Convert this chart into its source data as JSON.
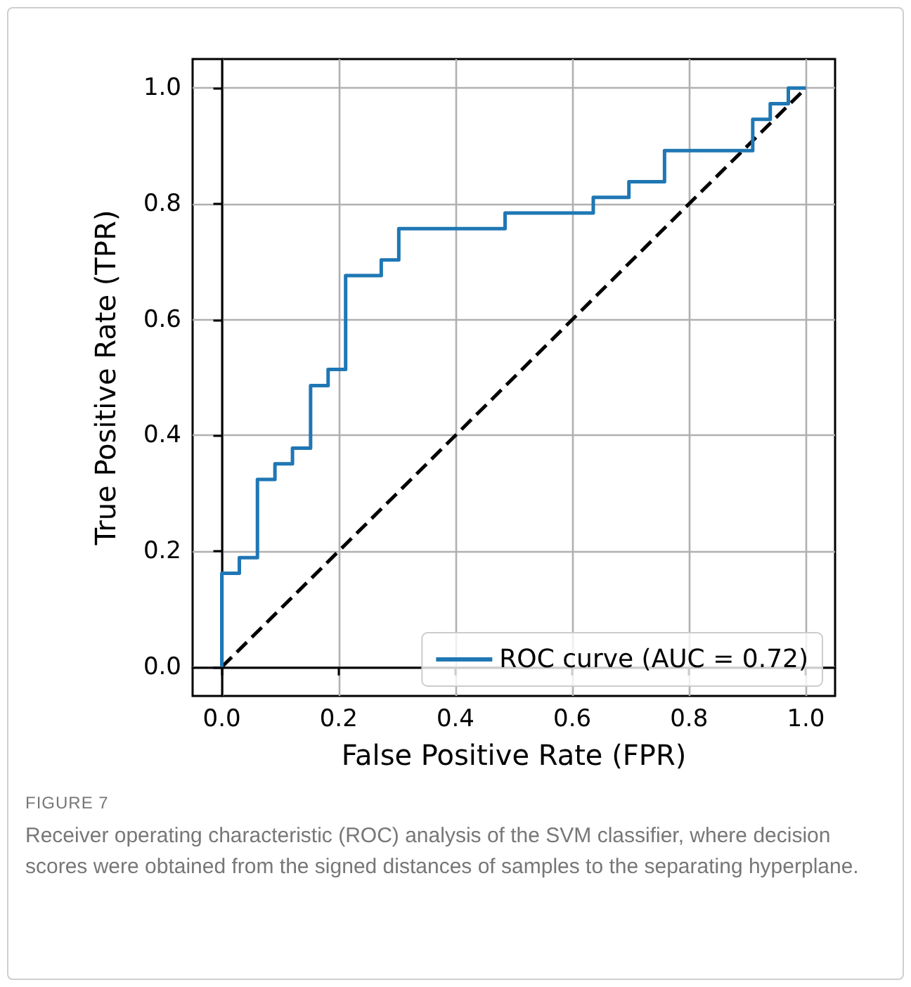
{
  "chart_data": {
    "type": "line",
    "xlabel": "False Positive Rate (FPR)",
    "ylabel": "True Positive Rate (TPR)",
    "series": [
      {
        "name": "ROC curve (AUC = 0.72)",
        "color": "#1f77b4",
        "line_style": "solid",
        "x": [
          0,
          0,
          0.03,
          0.03,
          0.061,
          0.061,
          0.091,
          0.091,
          0.121,
          0.121,
          0.152,
          0.152,
          0.182,
          0.182,
          0.212,
          0.212,
          0.273,
          0.273,
          0.303,
          0.303,
          0.485,
          0.485,
          0.636,
          0.636,
          0.697,
          0.697,
          0.758,
          0.758,
          0.909,
          0.909,
          0.939,
          0.939,
          0.97,
          0.97,
          1
        ],
        "values": [
          0,
          0.162,
          0.162,
          0.189,
          0.189,
          0.324,
          0.324,
          0.351,
          0.351,
          0.378,
          0.378,
          0.486,
          0.486,
          0.514,
          0.514,
          0.676,
          0.676,
          0.703,
          0.703,
          0.757,
          0.757,
          0.784,
          0.784,
          0.811,
          0.811,
          0.838,
          0.838,
          0.892,
          0.892,
          0.946,
          0.946,
          0.973,
          0.973,
          1,
          1
        ]
      },
      {
        "color": "#000000",
        "line_style": "dashed",
        "x": [
          0,
          1
        ],
        "values": [
          0,
          1
        ]
      }
    ],
    "xlim": [
      -0.05,
      1.05
    ],
    "ylim": [
      -0.05,
      1.05
    ],
    "xticks": [
      {
        "value": 0,
        "label": "0.0"
      },
      0.2,
      0.4,
      0.6,
      0.8,
      {
        "value": 1,
        "label": "1.0"
      }
    ],
    "yticks": [
      {
        "value": 0,
        "label": "0.0"
      },
      0.2,
      0.4,
      0.6,
      0.8,
      {
        "value": 1,
        "label": "1.0"
      }
    ],
    "grid": true,
    "legend": "bottom right",
    "marker": "none",
    "annotations": [
      "FIGURE 7",
      "Receiver operating characteristic (ROC) analysis of the SVM classifier, where decision scores were obtained from the signed distances of samples to the separating hyperplane."
    ]
  }
}
